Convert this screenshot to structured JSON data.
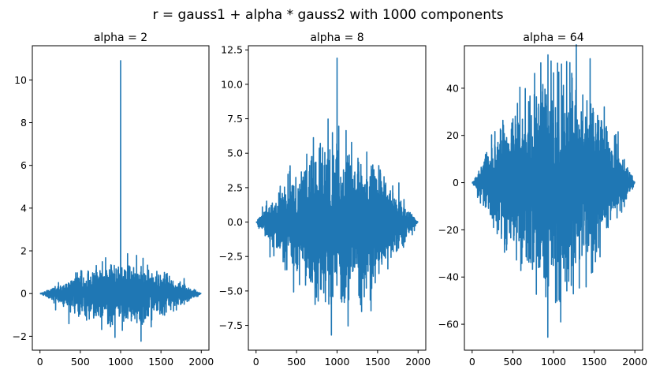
{
  "figure": {
    "suptitle": "r = gauss1 + alpha * gauss2 with 1000 components"
  },
  "chart_data": [
    {
      "type": "line",
      "title": "alpha = 2",
      "xlabel": "",
      "ylabel": "",
      "xlim": [
        -95,
        2095
      ],
      "ylim": [
        -2.65,
        11.6
      ],
      "x_ticks": [
        0,
        500,
        1000,
        1500,
        2000
      ],
      "x_tick_labels": [
        "0",
        "500",
        "1000",
        "1500",
        "2000"
      ],
      "y_ticks": [
        -2,
        0,
        2,
        4,
        6,
        8,
        10
      ],
      "y_tick_labels": [
        "−2",
        "0",
        "2",
        "4",
        "6",
        "8",
        "10"
      ],
      "series": [
        {
          "color": "#1f77b4",
          "n_points": 2000,
          "description_values": {
            "x_range": [
              0,
              2000
            ],
            "envelope_center": 1000,
            "envelope_max_abs": 1.9,
            "spike": {
              "x": 1000,
              "y": 10.9
            },
            "min_value": -2.05
          }
        }
      ]
    },
    {
      "type": "line",
      "title": "alpha = 8",
      "xlabel": "",
      "ylabel": "",
      "xlim": [
        -95,
        2095
      ],
      "ylim": [
        -9.3,
        12.8
      ],
      "x_ticks": [
        0,
        500,
        1000,
        1500,
        2000
      ],
      "x_tick_labels": [
        "0",
        "500",
        "1000",
        "1500",
        "2000"
      ],
      "y_ticks": [
        -7.5,
        -5,
        -2.5,
        0,
        2.5,
        5,
        7.5,
        10,
        12.5
      ],
      "y_tick_labels": [
        "−7.5",
        "−5.0",
        "−2.5",
        "0.0",
        "2.5",
        "5.0",
        "7.5",
        "10.0",
        "12.5"
      ],
      "series": [
        {
          "color": "#1f77b4",
          "n_points": 2000,
          "description_values": {
            "x_range": [
              0,
              2000
            ],
            "envelope_center": 1000,
            "envelope_max_abs": 7.9,
            "spike": {
              "x": 1000,
              "y": 11.9
            },
            "min_value": -8.2
          }
        }
      ]
    },
    {
      "type": "line",
      "title": "alpha = 64",
      "xlabel": "",
      "ylabel": "",
      "xlim": [
        -95,
        2095
      ],
      "ylim": [
        -71,
        58
      ],
      "x_ticks": [
        0,
        500,
        1000,
        1500,
        2000
      ],
      "x_tick_labels": [
        "0",
        "500",
        "1000",
        "1500",
        "2000"
      ],
      "y_ticks": [
        -60,
        -40,
        -20,
        0,
        20,
        40
      ],
      "y_tick_labels": [
        "−60",
        "−40",
        "−20",
        "0",
        "20",
        "40"
      ],
      "series": [
        {
          "color": "#1f77b4",
          "n_points": 2000,
          "description_values": {
            "x_range": [
              0,
              2000
            ],
            "envelope_center": 1000,
            "envelope_max_abs": 64,
            "max_value": 52.5,
            "min_value": -65.5
          }
        }
      ]
    }
  ]
}
